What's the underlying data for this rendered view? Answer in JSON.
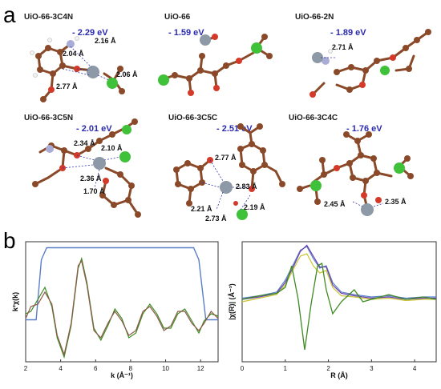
{
  "panel_labels": {
    "a": "a",
    "b": "b"
  },
  "colors": {
    "carbon": "#8a4a2a",
    "oxygen": "#d43a2a",
    "nitrogen": "#a9acd6",
    "hydrogen": "#f2f2f2",
    "zirconium": "#8d99a6",
    "chlorine": "#3fc23a",
    "energy_text": "#2b2bb0",
    "line_blue": "#5b7fc7",
    "line_green": "#3f8a22",
    "line_brown": "#8b5a4a",
    "line_yellow": "#c9c431",
    "line_purple": "#6a3fb0"
  },
  "structures": [
    {
      "title": "UiO-66-3C4N",
      "energy": "- 2.29 eV",
      "distances": [
        "2.16 Å",
        "2.04 Å",
        "2.06 Å",
        "2.77 Å"
      ]
    },
    {
      "title": "UiO-66",
      "energy": "- 1.59 eV",
      "distances": []
    },
    {
      "title": "UiO-66-2N",
      "energy": "- 1.89 eV",
      "distances": [
        "2.71 Å"
      ]
    },
    {
      "title": "UiO-66-3C5N",
      "energy": "- 2.01 eV",
      "distances": [
        "2.34 Å",
        "2.10 Å",
        "2.36 Å",
        "1.70 Å"
      ]
    },
    {
      "title": "UiO-66-3C5C",
      "energy": "- 2.51 eV",
      "distances": [
        "2.77 Å",
        "2.83 Å",
        "2.21 Å",
        "2.73 Å",
        "2.19 Å"
      ]
    },
    {
      "title": "UiO-66-3C4C",
      "energy": "- 1.76 eV",
      "distances": [
        "2.45 Å",
        "2.35 Å"
      ]
    }
  ],
  "chart_data": [
    {
      "type": "line",
      "xlabel": "k (Å⁻¹)",
      "ylabel": "k²χ(k)",
      "xlim": [
        2,
        13
      ],
      "xticks": [
        "2",
        "4",
        "6",
        "8",
        "10",
        "12"
      ],
      "window": {
        "x": [
          2.6,
          2.9,
          3.2,
          11.6,
          11.9,
          12.3
        ],
        "y": [
          0.35,
          0.85,
          0.95,
          0.95,
          0.85,
          0.35
        ]
      },
      "series": [
        {
          "x": [
            2.0,
            2.3,
            2.7,
            3.1,
            3.5,
            3.8,
            4.2,
            4.6,
            5.0,
            5.2,
            5.5,
            5.9,
            6.3,
            6.7,
            7.1,
            7.5,
            7.9,
            8.3,
            8.7,
            9.1,
            9.5,
            9.9,
            10.3,
            10.7,
            11.1,
            11.5,
            11.9,
            12.2,
            12.6,
            13.0
          ],
          "y": [
            0.4,
            0.42,
            0.52,
            0.62,
            0.46,
            0.2,
            0.04,
            0.3,
            0.78,
            0.86,
            0.66,
            0.28,
            0.18,
            0.3,
            0.44,
            0.36,
            0.2,
            0.24,
            0.4,
            0.48,
            0.4,
            0.28,
            0.28,
            0.4,
            0.44,
            0.34,
            0.24,
            0.34,
            0.4,
            0.38
          ]
        },
        {
          "x": [
            2.0,
            2.3,
            2.7,
            3.1,
            3.5,
            3.8,
            4.2,
            4.6,
            5.0,
            5.2,
            5.5,
            5.9,
            6.3,
            6.7,
            7.1,
            7.5,
            7.9,
            8.3,
            8.7,
            9.1,
            9.5,
            9.9,
            10.3,
            10.7,
            11.1,
            11.5,
            11.9,
            12.2,
            12.6,
            13.0
          ],
          "y": [
            0.36,
            0.46,
            0.48,
            0.58,
            0.48,
            0.22,
            0.06,
            0.32,
            0.8,
            0.84,
            0.64,
            0.26,
            0.2,
            0.32,
            0.42,
            0.34,
            0.22,
            0.26,
            0.42,
            0.46,
            0.38,
            0.26,
            0.3,
            0.42,
            0.42,
            0.32,
            0.26,
            0.32,
            0.42,
            0.36
          ]
        }
      ]
    },
    {
      "type": "line",
      "xlabel": "R (Å)",
      "ylabel": "|χ(R)| (Å⁻³)",
      "xlim": [
        0,
        4.5
      ],
      "xticks": [
        "0",
        "1",
        "2",
        "3",
        "4"
      ],
      "series": [
        {
          "x": [
            0.0,
            0.4,
            0.8,
            1.0,
            1.2,
            1.35,
            1.5,
            1.65,
            1.8,
            1.95,
            2.1,
            2.3,
            2.6,
            3.0,
            3.4,
            3.8,
            4.2,
            4.5
          ],
          "y": [
            0.53,
            0.55,
            0.58,
            0.68,
            0.82,
            0.93,
            0.96,
            0.86,
            0.78,
            0.8,
            0.66,
            0.58,
            0.56,
            0.54,
            0.55,
            0.53,
            0.54,
            0.54
          ]
        },
        {
          "x": [
            0.0,
            0.4,
            0.8,
            1.0,
            1.2,
            1.35,
            1.5,
            1.65,
            1.8,
            1.95,
            2.1,
            2.3,
            2.6,
            3.0,
            3.4,
            3.8,
            4.2,
            4.5
          ],
          "y": [
            0.52,
            0.54,
            0.57,
            0.66,
            0.8,
            0.92,
            0.97,
            0.88,
            0.79,
            0.79,
            0.64,
            0.57,
            0.55,
            0.53,
            0.54,
            0.52,
            0.53,
            0.53
          ]
        },
        {
          "x": [
            0.0,
            0.4,
            0.8,
            1.0,
            1.15,
            1.3,
            1.45,
            1.6,
            1.75,
            1.85,
            1.95,
            2.1,
            2.3,
            2.6,
            2.8,
            3.0,
            3.4,
            3.8,
            4.2,
            4.5
          ],
          "y": [
            0.52,
            0.55,
            0.57,
            0.62,
            0.8,
            0.52,
            0.1,
            0.48,
            0.8,
            0.82,
            0.6,
            0.4,
            0.5,
            0.6,
            0.5,
            0.52,
            0.56,
            0.52,
            0.54,
            0.52
          ]
        },
        {
          "x": [
            0.0,
            0.4,
            0.8,
            1.0,
            1.2,
            1.35,
            1.5,
            1.65,
            1.8,
            1.95,
            2.1,
            2.3,
            2.6,
            3.0,
            3.4,
            3.8,
            4.2,
            4.5
          ],
          "y": [
            0.5,
            0.53,
            0.56,
            0.64,
            0.78,
            0.88,
            0.9,
            0.8,
            0.74,
            0.76,
            0.62,
            0.55,
            0.54,
            0.52,
            0.53,
            0.51,
            0.52,
            0.52
          ]
        }
      ]
    }
  ]
}
